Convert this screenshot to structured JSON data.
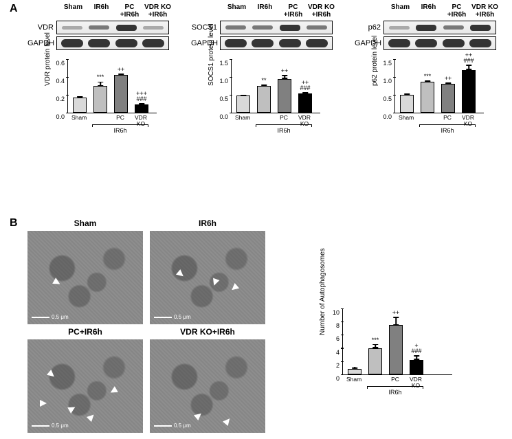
{
  "panelA": {
    "label": "A",
    "lane_labels": [
      "Sham",
      "IR6h",
      "PC\n+IR6h",
      "VDR KO\n+IR6h"
    ],
    "blots": [
      {
        "target": "VDR",
        "loading": "GAPDH",
        "band_intensity": [
          "faint",
          "medium",
          "strong",
          "faint"
        ],
        "chart": {
          "ylabel": "VDR protein level",
          "ymax": 0.6,
          "ytick_step": 0.2,
          "values": [
            0.17,
            0.3,
            0.42,
            0.09
          ],
          "errors": [
            0.015,
            0.05,
            0.02,
            0.015
          ],
          "colors": [
            "#d9d9d9",
            "#bfbfbf",
            "#808080",
            "#000000"
          ],
          "sig": [
            "",
            "***",
            "++",
            "+++\n###"
          ]
        }
      },
      {
        "target": "SOCS1",
        "loading": "GAPDH",
        "band_intensity": [
          "medium",
          "medium",
          "strong",
          "medium"
        ],
        "chart": {
          "ylabel": "SOCS1 protein level",
          "ymax": 1.5,
          "ytick_step": 0.5,
          "values": [
            0.48,
            0.75,
            0.95,
            0.53
          ],
          "errors": [
            0.03,
            0.04,
            0.1,
            0.04
          ],
          "colors": [
            "#d9d9d9",
            "#bfbfbf",
            "#808080",
            "#000000"
          ],
          "sig": [
            "",
            "**",
            "++",
            "++\n###"
          ]
        }
      },
      {
        "target": "p62",
        "loading": "GAPDH",
        "band_intensity": [
          "faint",
          "strong",
          "medium",
          "strong"
        ],
        "chart": {
          "ylabel": "p62 protein level",
          "ymax": 1.5,
          "ytick_step": 0.5,
          "values": [
            0.5,
            0.86,
            0.8,
            1.2
          ],
          "errors": [
            0.04,
            0.04,
            0.04,
            0.14
          ],
          "colors": [
            "#d9d9d9",
            "#bfbfbf",
            "#808080",
            "#000000"
          ],
          "sig": [
            "",
            "***",
            "++",
            "++\n###"
          ]
        }
      }
    ],
    "cats": [
      "Sham",
      "",
      "PC",
      "VDR KO"
    ],
    "bracket_label": "IR6h"
  },
  "panelB": {
    "label": "B",
    "images": [
      {
        "title": "Sham",
        "arrows": [
          [
            38,
            70,
            120
          ]
        ]
      },
      {
        "title": "IR6h",
        "arrows": [
          [
            40,
            58,
            130
          ],
          [
            90,
            70,
            200
          ],
          [
            118,
            78,
            230
          ]
        ]
      },
      {
        "title": "PC+IR6h",
        "arrows": [
          [
            30,
            46,
            130
          ],
          [
            18,
            88,
            90
          ],
          [
            60,
            96,
            60
          ],
          [
            88,
            108,
            45
          ],
          [
            120,
            70,
            240
          ]
        ]
      },
      {
        "title": "VDR KO+IR6h",
        "arrows": [
          [
            66,
            106,
            50
          ],
          [
            108,
            114,
            40
          ]
        ]
      }
    ],
    "scale_label": "0.5 μm",
    "chart": {
      "ylabel": "Number\nof Autophagosomes",
      "ymax": 10,
      "ytick_step": 2,
      "values": [
        0.8,
        4.0,
        7.5,
        2.2
      ],
      "errors": [
        0.35,
        0.6,
        1.2,
        0.7
      ],
      "colors": [
        "#d9d9d9",
        "#bfbfbf",
        "#808080",
        "#000000"
      ],
      "sig": [
        "",
        "***",
        "++",
        "+\n###"
      ],
      "cats": [
        "Sham",
        "",
        "PC",
        "VDR KO"
      ],
      "bracket_label": "IR6h"
    }
  },
  "colors": {
    "axis": "#000000",
    "background": "#ffffff"
  }
}
